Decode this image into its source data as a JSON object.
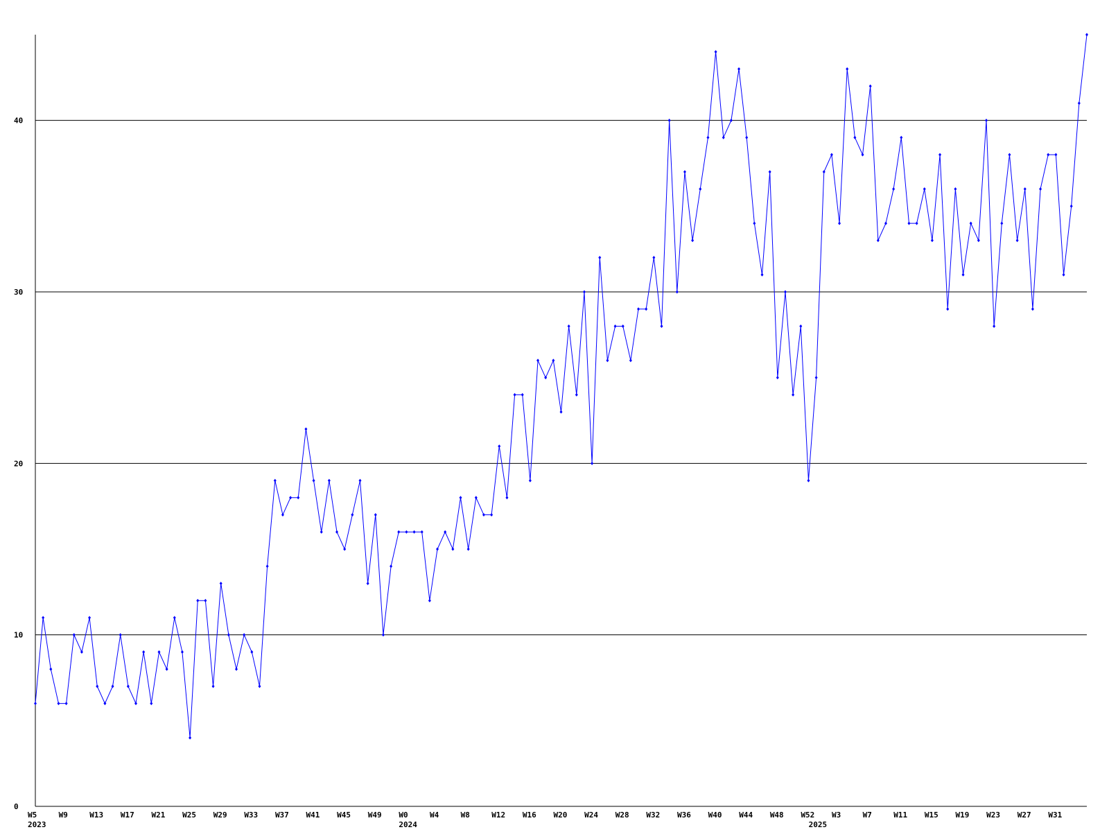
{
  "chart_data": {
    "type": "line",
    "color": "#0000ff",
    "grid": true,
    "ylim": [
      0,
      45
    ],
    "yticks": [
      0,
      10,
      20,
      30,
      40
    ],
    "categories": [
      "W5",
      null,
      null,
      null,
      "W9",
      null,
      null,
      null,
      "W13",
      null,
      null,
      null,
      "W17",
      null,
      null,
      null,
      "W21",
      null,
      null,
      null,
      "W25",
      null,
      null,
      null,
      "W29",
      null,
      null,
      null,
      "W33",
      null,
      null,
      null,
      "W37",
      null,
      null,
      null,
      "W41",
      null,
      null,
      null,
      "W45",
      null,
      null,
      null,
      "W49",
      null,
      null,
      null,
      "W0",
      null,
      null,
      null,
      "W4",
      null,
      null,
      null,
      "W8",
      null,
      null,
      null,
      "W12",
      null,
      null,
      null,
      "W16",
      null,
      null,
      null,
      "W20",
      null,
      null,
      null,
      "W24",
      null,
      null,
      null,
      "W28",
      null,
      null,
      null,
      "W32",
      null,
      null,
      null,
      "W36",
      null,
      null,
      null,
      "W40",
      null,
      null,
      null,
      "W44",
      null,
      null,
      null,
      "W48",
      null,
      null,
      null,
      "W52",
      null,
      null,
      null,
      "W3",
      null,
      null,
      null,
      "W7",
      null,
      null,
      null,
      "W11",
      null,
      null,
      null,
      "W15",
      null,
      null,
      null,
      "W19",
      null,
      null,
      null,
      "W23",
      null,
      null,
      null,
      "W27",
      null,
      null,
      null,
      "W31",
      null,
      null,
      null,
      null
    ],
    "year_labels": [
      "2023",
      null,
      null,
      null,
      null,
      null,
      null,
      null,
      null,
      null,
      null,
      null,
      null,
      null,
      null,
      null,
      null,
      null,
      null,
      null,
      null,
      null,
      null,
      null,
      null,
      null,
      null,
      null,
      null,
      null,
      null,
      null,
      null,
      null,
      null,
      null,
      null,
      null,
      null,
      null,
      null,
      null,
      null,
      null,
      null,
      null,
      null,
      null,
      "2024",
      null,
      null,
      null,
      null,
      null,
      null,
      null,
      null,
      null,
      null,
      null,
      null,
      null,
      null,
      null,
      null,
      null,
      null,
      null,
      null,
      null,
      null,
      null,
      null,
      null,
      null,
      null,
      null,
      null,
      null,
      null,
      null,
      null,
      null,
      null,
      null,
      null,
      null,
      null,
      null,
      null,
      null,
      null,
      null,
      null,
      null,
      null,
      null,
      null,
      null,
      null,
      null,
      "2025",
      null,
      null,
      null,
      null,
      null,
      null,
      null,
      null,
      null,
      null,
      null,
      null,
      null,
      null,
      null,
      null,
      null,
      null,
      null,
      null,
      null,
      null,
      null,
      null,
      null,
      null,
      null,
      null,
      null,
      null,
      null,
      null,
      null,
      null,
      null
    ],
    "values": [
      6,
      11,
      8,
      6,
      6,
      10,
      9,
      11,
      7,
      6,
      7,
      10,
      7,
      6,
      9,
      6,
      9,
      8,
      11,
      9,
      4,
      12,
      12,
      7,
      13,
      10,
      8,
      10,
      9,
      7,
      14,
      19,
      17,
      18,
      18,
      22,
      19,
      16,
      19,
      16,
      15,
      17,
      19,
      13,
      17,
      10,
      14,
      16,
      16,
      16,
      16,
      12,
      15,
      16,
      15,
      18,
      15,
      18,
      17,
      17,
      21,
      18,
      24,
      24,
      19,
      26,
      25,
      26,
      23,
      28,
      24,
      30,
      20,
      32,
      26,
      28,
      28,
      26,
      29,
      29,
      32,
      28,
      40,
      30,
      37,
      33,
      36,
      39,
      44,
      39,
      40,
      43,
      39,
      34,
      31,
      37,
      25,
      30,
      24,
      28,
      19,
      25,
      37,
      38,
      34,
      43,
      39,
      38,
      42,
      33,
      34,
      36,
      39,
      34,
      34,
      36,
      33,
      38,
      29,
      36,
      31,
      34,
      33,
      40,
      28,
      34,
      38,
      33,
      36,
      29,
      36,
      38,
      38,
      31,
      35,
      41,
      45
    ]
  }
}
